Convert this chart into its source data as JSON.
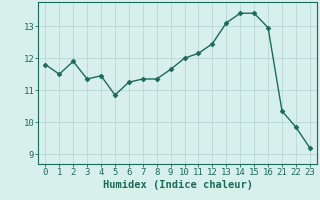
{
  "x_values": [
    0,
    1,
    2,
    3,
    4,
    5,
    6,
    7,
    8,
    9,
    10,
    11,
    12,
    13,
    14,
    15,
    16,
    21,
    22,
    23
  ],
  "y_values": [
    11.8,
    11.5,
    11.9,
    11.35,
    11.45,
    10.85,
    11.25,
    11.35,
    11.35,
    11.65,
    12.0,
    12.15,
    12.45,
    13.1,
    13.4,
    13.4,
    12.95,
    10.35,
    9.85,
    9.2
  ],
  "line_color": "#1a6b5a",
  "marker": "D",
  "marker_size": 2.5,
  "bg_color": "#d8f0ec",
  "grid_color": "#b8d8d4",
  "xlabel": "Humidex (Indice chaleur)",
  "xlabel_fontsize": 7.5,
  "ylim": [
    8.7,
    13.75
  ],
  "ytick_positions": [
    9,
    10,
    11,
    12,
    13
  ],
  "ytick_labels": [
    "9",
    "10",
    "11",
    "12",
    "13"
  ],
  "tick_fontsize": 6.5,
  "linewidth": 1.0
}
